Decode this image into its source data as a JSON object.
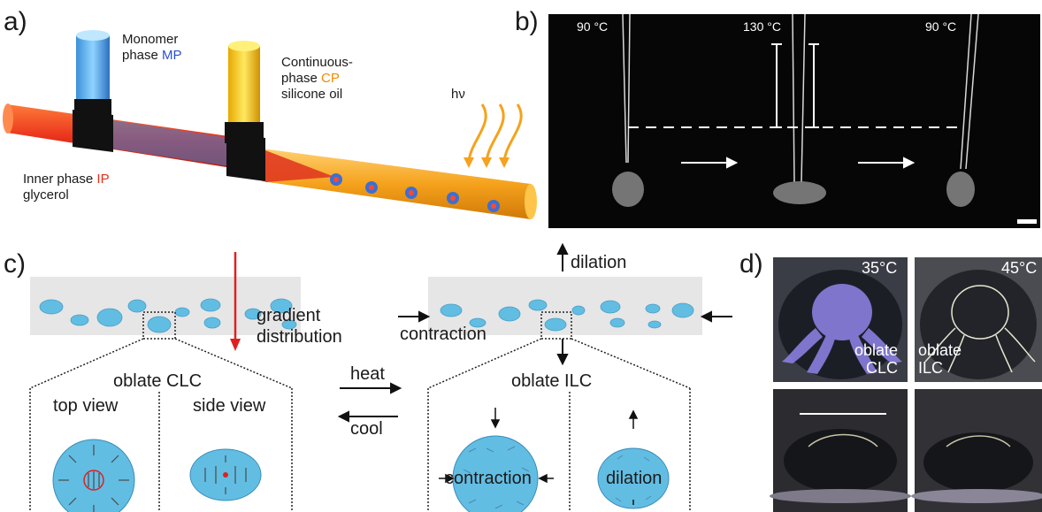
{
  "panel_a": {
    "letter": "a)",
    "monomer_line1": "Monomer",
    "monomer_line2_prefix": "phase ",
    "monomer_line2_accent": "MP",
    "continuous_line1": "Continuous-",
    "continuous_line2_prefix": "phase ",
    "continuous_line2_accent": "CP",
    "continuous_line3": "silicone oil",
    "inner_line1_prefix": "Inner phase ",
    "inner_line1_accent": "IP",
    "inner_line2": "glycerol",
    "light": "hν"
  },
  "panel_b": {
    "letter": "b)",
    "temp1": "90 °C",
    "temp2": "130 °C",
    "temp3": "90 °C"
  },
  "panel_c": {
    "letter": "c)",
    "gradient_line1": "gradient",
    "gradient_line2": "distribution",
    "dilation_top": "dilation",
    "contraction_side": "contraction",
    "oblate_clc": "oblate CLC",
    "oblate_ilc": "oblate ILC",
    "top_view": "top view",
    "side_view": "side view",
    "heat": "heat",
    "cool": "cool",
    "contraction_inner": "contraction",
    "dilation_inner": "dilation"
  },
  "panel_d": {
    "letter": "d)",
    "temp_left": "35°C",
    "temp_right": "45°C",
    "label_left_1": "oblate",
    "label_left_2": "CLC",
    "label_right_1": "oblate",
    "label_right_2": "ILC"
  },
  "colors": {
    "mp_accent": "#2a4fd0",
    "cp_accent": "#f08a00",
    "ip_accent": "#e0321c",
    "droplet": "#62bde3",
    "red_arrow": "#e02020"
  }
}
